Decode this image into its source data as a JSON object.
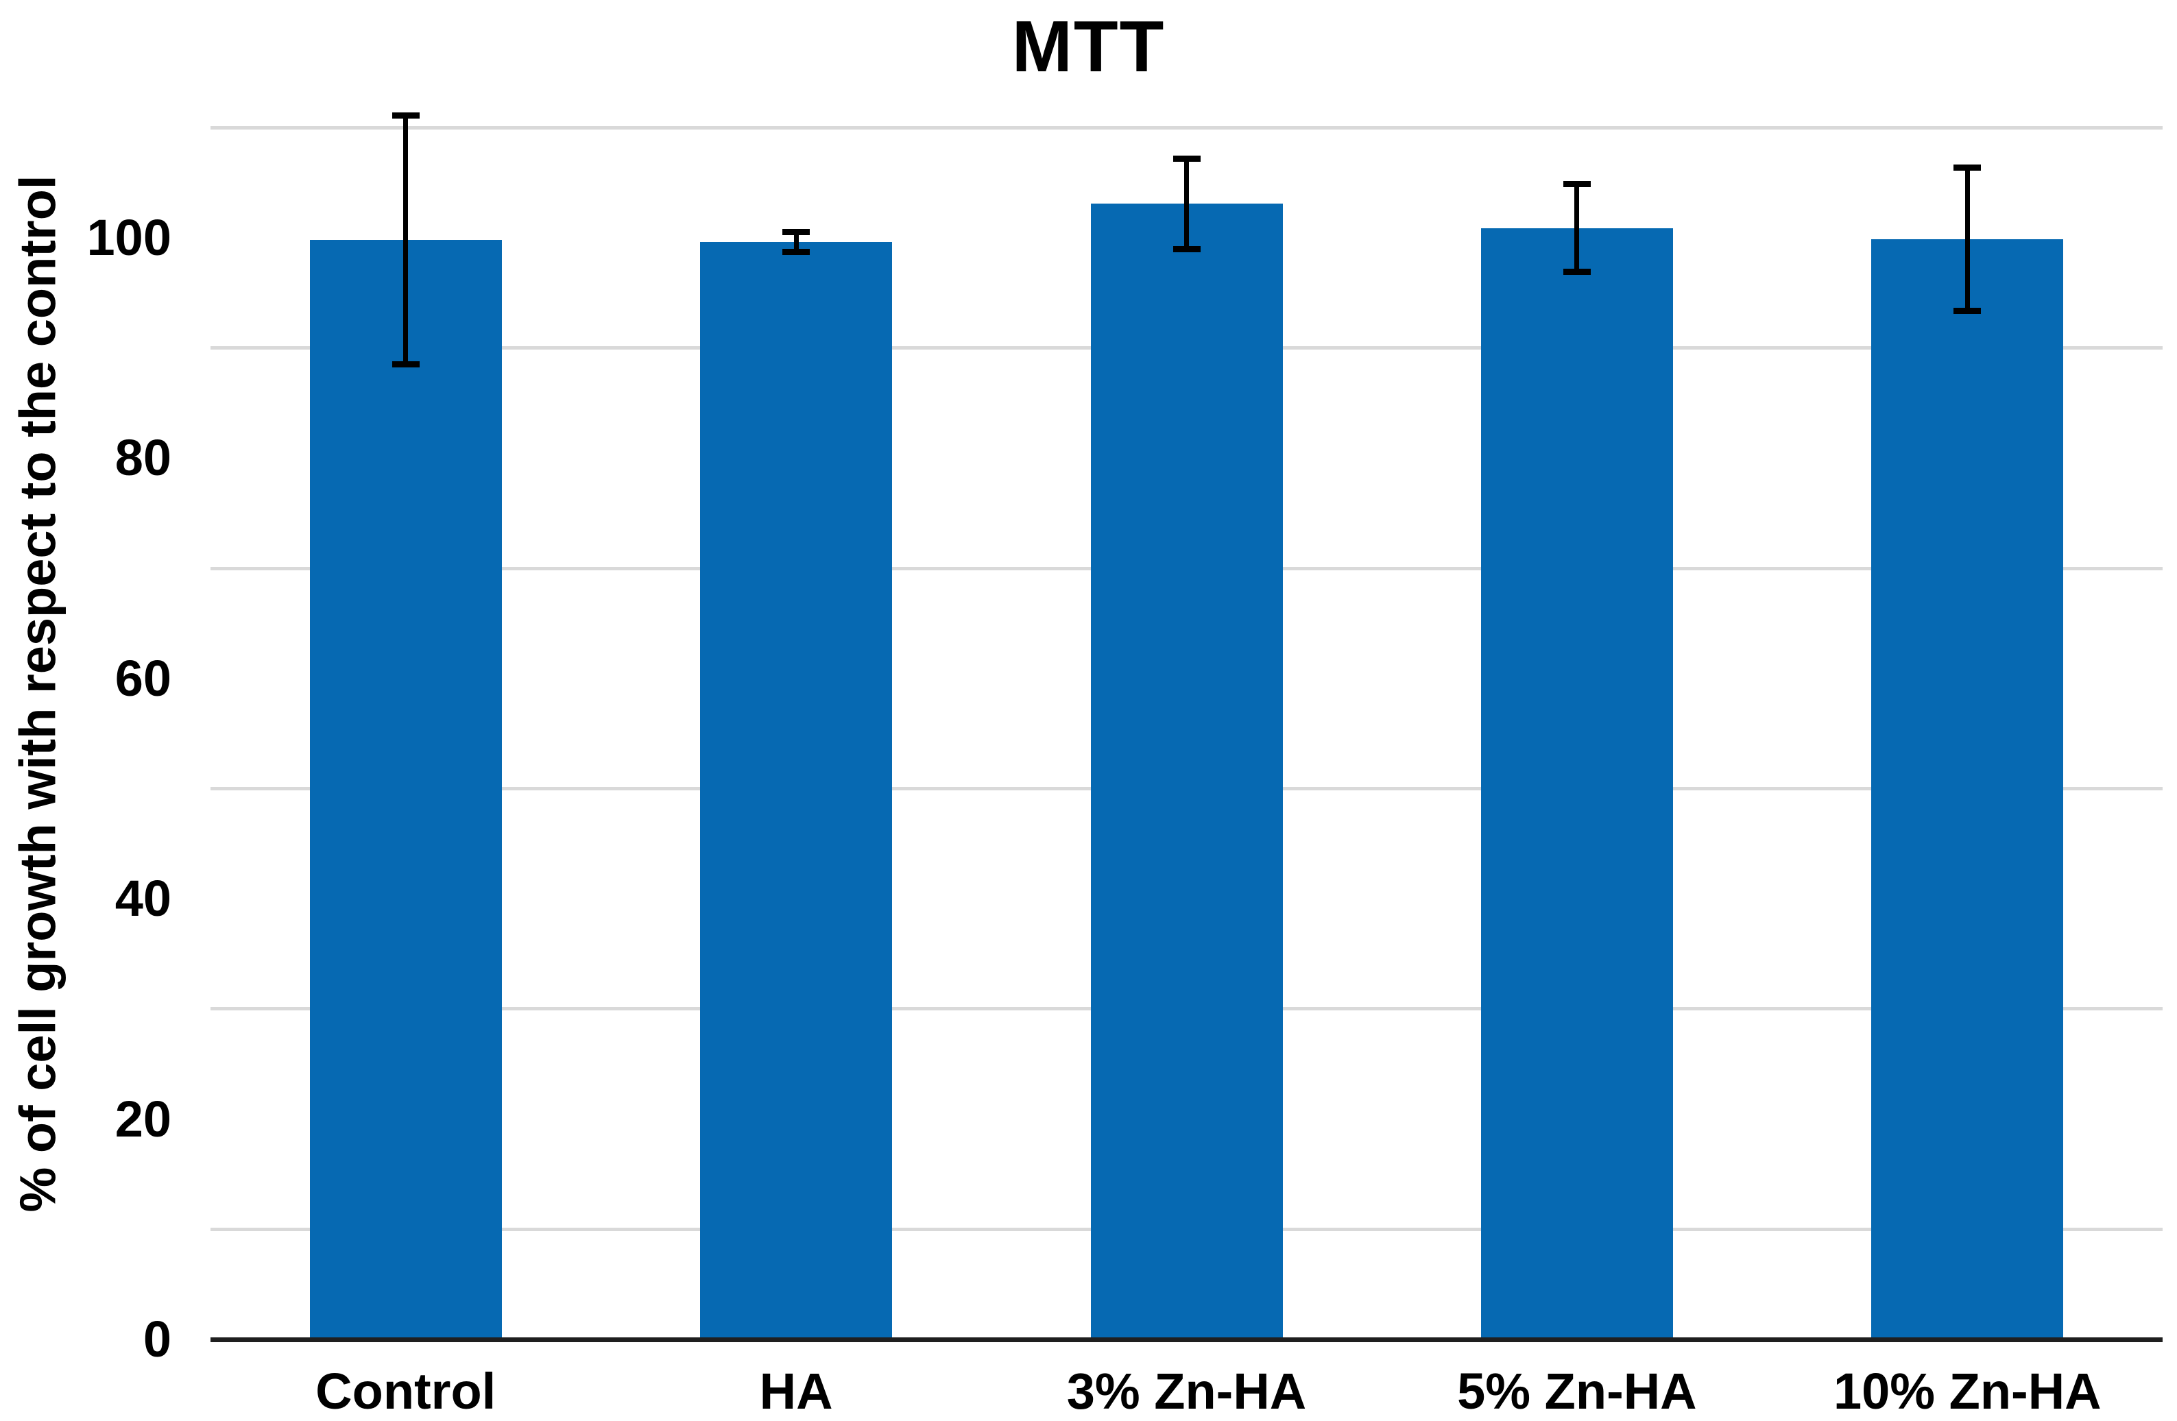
{
  "title": "MTT",
  "y_axis": {
    "label": "% of cell growth with respect to the control",
    "ticks": [
      0,
      20,
      40,
      60,
      80,
      100
    ],
    "gridlines": [
      10,
      30,
      50,
      70,
      90,
      110
    ]
  },
  "chart_data": {
    "type": "bar",
    "title": "MTT",
    "categories": [
      "Control",
      "HA",
      "3% Zn-HA",
      "5% Zn-HA",
      "10% Zn-HA"
    ],
    "values": [
      99.8,
      99.6,
      103.1,
      100.9,
      99.9
    ],
    "errors": [
      11.3,
      0.9,
      4.1,
      4.0,
      6.5
    ],
    "xlabel": "",
    "ylabel": "% of cell growth with respect to the control",
    "ylim": [
      0,
      113
    ],
    "grid": true,
    "legend_position": "none",
    "bar_color": "#0669B2",
    "gridline_color": "#D9D9D9",
    "axis_line_color": "#1F1F1F",
    "error_bar_color": "#000000"
  }
}
